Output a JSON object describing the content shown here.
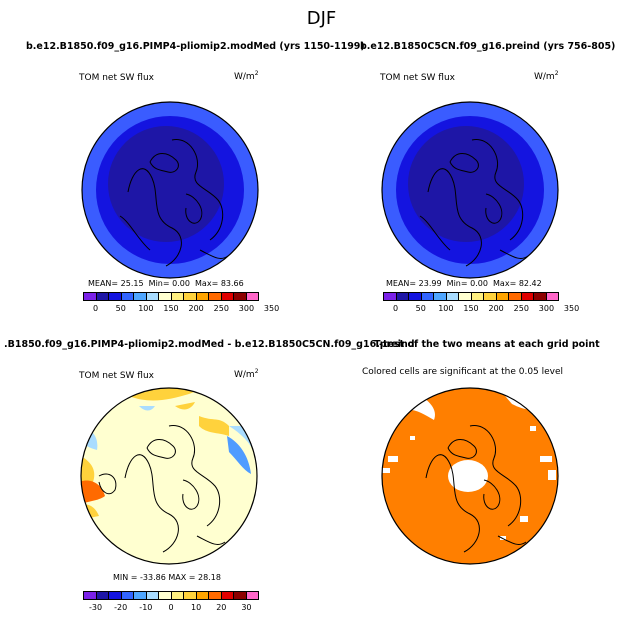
{
  "figure": {
    "title": "DJF"
  },
  "panels": [
    {
      "title": "b.e12.B1850.f09_g16.PIMP4-pliomip2.modMed (yrs 1150-1199)",
      "subtitle": "TOM net SW flux",
      "units": "W/m",
      "units_exp": "2",
      "stats": {
        "mean_label": "MEAN=",
        "mean": "25.15",
        "min_label": "Min=",
        "min": "0.00",
        "max_label": "Max=",
        "max": "83.66"
      },
      "colorbar": {
        "colors": [
          "#7b22e8",
          "#1e16a6",
          "#1414e0",
          "#3264ff",
          "#4fa6ff",
          "#a9dcff",
          "#ffffd0",
          "#fff081",
          "#ffd23c",
          "#ffa400",
          "#ff6a00",
          "#e00000",
          "#8c0000",
          "#ff67c9"
        ],
        "labels": [
          "0",
          "50",
          "100",
          "150",
          "200",
          "250",
          "300",
          "350"
        ]
      }
    },
    {
      "title": "b.e12.B1850C5CN.f09_g16.preind (yrs 756-805)",
      "subtitle": "TOM net SW flux",
      "units": "W/m",
      "units_exp": "2",
      "stats": {
        "mean_label": "MEAN=",
        "mean": "23.99",
        "min_label": "Min=",
        "min": "0.00",
        "max_label": "Max=",
        "max": "82.42"
      },
      "colorbar": {
        "colors": [
          "#7b22e8",
          "#1e16a6",
          "#1414e0",
          "#3264ff",
          "#4fa6ff",
          "#a9dcff",
          "#ffffd0",
          "#fff081",
          "#ffd23c",
          "#ffa400",
          "#ff6a00",
          "#e00000",
          "#8c0000",
          "#ff67c9"
        ],
        "labels": [
          "0",
          "50",
          "100",
          "150",
          "200",
          "250",
          "300",
          "350"
        ]
      }
    },
    {
      "title": ".B1850.f09_g16.PIMP4-pliomip2.modMed - b.e12.B1850C5CN.f09_g16.preind",
      "subtitle": "TOM net SW flux",
      "units": "W/m",
      "units_exp": "2",
      "stats_text": "MIN = -33.86  MAX =  28.18",
      "colorbar": {
        "colors": [
          "#7b22e8",
          "#1e16a6",
          "#1414e0",
          "#3264ff",
          "#4fa6ff",
          "#a9dcff",
          "#ffffd0",
          "#fff081",
          "#ffd23c",
          "#ffa400",
          "#ff6a00",
          "#e00000",
          "#8c0000",
          "#ff67c9"
        ],
        "labels": [
          "-30",
          "-20",
          "-10",
          "0",
          "10",
          "20",
          "30"
        ]
      }
    },
    {
      "title": "T-test of the two means at each grid point",
      "subtitle": "Colored cells are significant at the 0.05 level"
    }
  ],
  "map_colors": {
    "outer": "#3a5cff",
    "mid": "#1414e0",
    "inner": "#1e16a6",
    "diff_base": "#ffffd0",
    "diff_warm": "#ffd23c",
    "diff_hot": "#ff6a00",
    "diff_cool": "#a9dcff",
    "diff_blue": "#4f9cff",
    "ttest": "#ff7f00"
  }
}
